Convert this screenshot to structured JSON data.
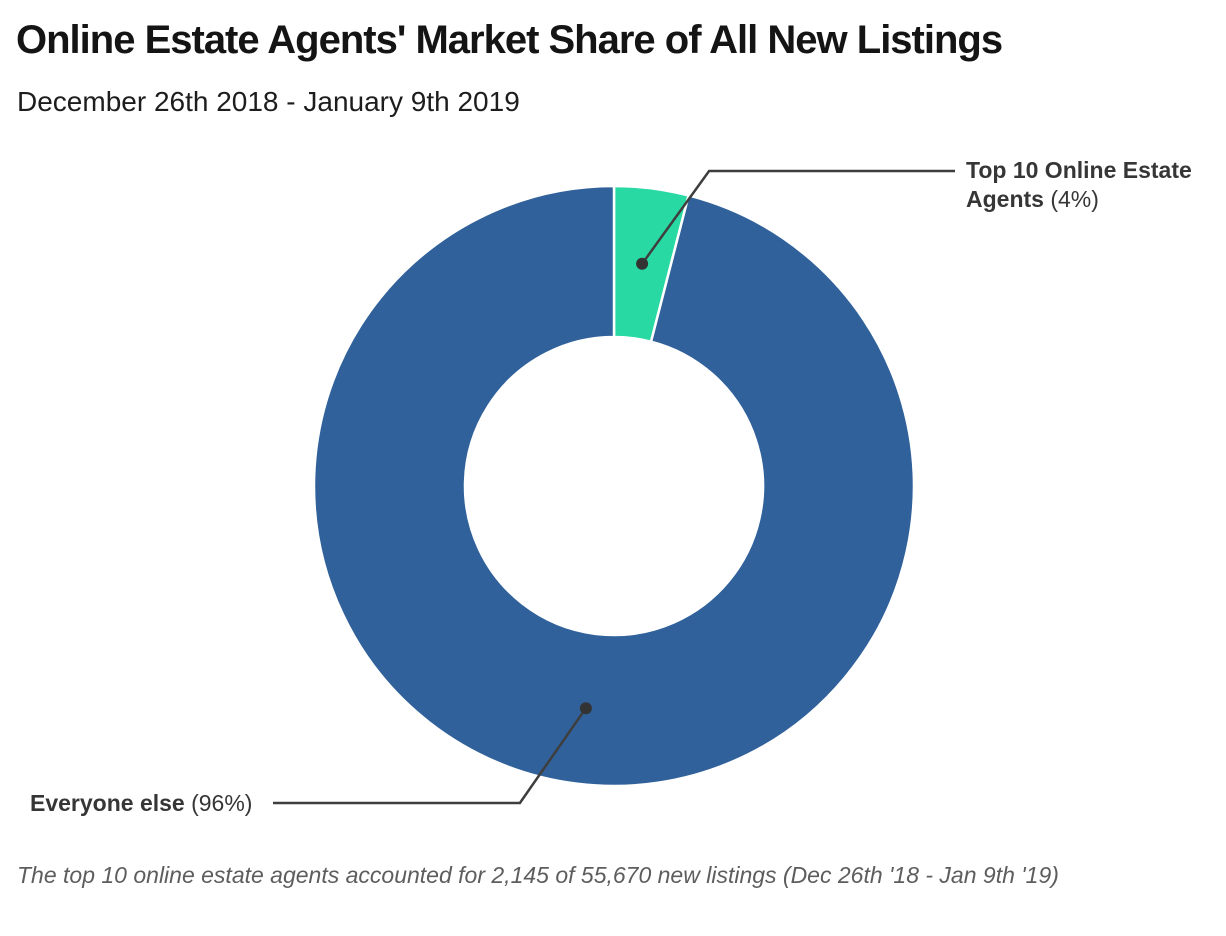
{
  "header": {
    "title": "Online Estate Agents' Market Share of All New Listings",
    "subtitle": "December 26th 2018 - January 9th 2019"
  },
  "chart_data": {
    "type": "pie",
    "variant": "donut",
    "title": "Online Estate Agents' Market Share of All New Listings",
    "subtitle": "December 26th 2018 - January 9th 2019",
    "start_angle_deg": 0,
    "direction": "clockwise",
    "hole_ratio": 0.497,
    "separator_color": "#ffffff",
    "leader_line_color": "#3e3e3e",
    "slices": [
      {
        "label": "Top 10 Online Estate Agents",
        "value_pct": 4,
        "color": "#29d9a3"
      },
      {
        "label": "Everyone else",
        "value_pct": 96,
        "color": "#30619b"
      }
    ]
  },
  "annotations": {
    "top": {
      "line1_bold": "Top 10 Online Estate",
      "line2_bold": "Agents",
      "pct": "(4%)"
    },
    "bottom": {
      "bold": "Everyone else",
      "pct": "(96%)"
    }
  },
  "footnote": "The top 10 online estate agents accounted for 2,145 of 55,670 new listings (Dec 26th '18 - Jan 9th '19)"
}
